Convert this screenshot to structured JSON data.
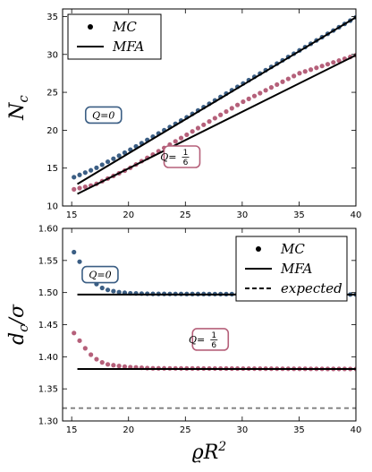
{
  "chart_data": [
    {
      "type": "scatter",
      "ylabel": "N",
      "ylabel_sub": "c",
      "xlim": [
        14.2,
        40
      ],
      "ylim": [
        10,
        36
      ],
      "xticks": [
        15,
        20,
        25,
        30,
        35,
        40
      ],
      "yticks": [
        10,
        15,
        20,
        25,
        30,
        35
      ],
      "legend": {
        "placement": "top-left",
        "entries": [
          {
            "marker": "dot",
            "label": "MC"
          },
          {
            "marker": "line",
            "label": "MFA"
          }
        ]
      },
      "annotations": [
        {
          "text": "Q = 0",
          "color": "#3b5e84",
          "x": 17.8,
          "y": 22
        },
        {
          "text": "Q = 1/6",
          "color": "#b5607a",
          "x": 24.7,
          "y": 16.5
        }
      ],
      "series": [
        {
          "kind": "mc",
          "color": "#3b5e84",
          "x_start": 15.2,
          "x_end": 40,
          "n": 51,
          "anchors": [
            [
              15.2,
              13.8
            ],
            [
              17,
              14.9
            ],
            [
              20,
              17.3
            ],
            [
              25,
              21.6
            ],
            [
              30,
              26.1
            ],
            [
              35,
              30.5
            ],
            [
              40,
              34.9
            ]
          ]
        },
        {
          "kind": "mfa",
          "color": "#000000",
          "x_start": 15.5,
          "x_end": 40,
          "anchors": [
            [
              15.5,
              12.9
            ],
            [
              40,
              34.9
            ]
          ]
        },
        {
          "kind": "mc",
          "color": "#b5607a",
          "x_start": 15.2,
          "x_end": 40,
          "n": 51,
          "anchors": [
            [
              15.2,
              12.2
            ],
            [
              17,
              12.8
            ],
            [
              20,
              14.9
            ],
            [
              25,
              19.3
            ],
            [
              30,
              23.7
            ],
            [
              35,
              27.5
            ],
            [
              40,
              29.9
            ]
          ]
        },
        {
          "kind": "mfa",
          "color": "#000000",
          "x_start": 15.5,
          "x_end": 40,
          "anchors": [
            [
              15.5,
              11.6
            ],
            [
              40,
              29.9
            ]
          ]
        }
      ]
    },
    {
      "type": "scatter",
      "xlabel": "ϱR",
      "xlabel_sup": "2",
      "ylabel": "d",
      "ylabel_sub": "c",
      "ylabel_tail": "/σ",
      "xlim": [
        14.2,
        40
      ],
      "ylim": [
        1.3,
        1.6
      ],
      "xticks": [
        15,
        20,
        25,
        30,
        35,
        40
      ],
      "yticks": [
        1.3,
        1.35,
        1.4,
        1.45,
        1.5,
        1.55,
        1.6
      ],
      "legend": {
        "placement": "top-right",
        "entries": [
          {
            "marker": "dot",
            "label": "MC"
          },
          {
            "marker": "line",
            "label": "MFA"
          },
          {
            "marker": "dashed",
            "label": "expected"
          }
        ]
      },
      "annotations": [
        {
          "text": "Q = 0",
          "color": "#3b5e84",
          "x": 17.5,
          "y": 1.528
        },
        {
          "text": "Q = 1/6",
          "color": "#b5607a",
          "x": 27.2,
          "y": 1.427
        }
      ],
      "series": [
        {
          "kind": "mc",
          "color": "#3b5e84",
          "x_start": 15.2,
          "x_end": 40,
          "n": 51,
          "anchors": [
            [
              15.2,
              1.563
            ],
            [
              15.7,
              1.548
            ],
            [
              16.2,
              1.534
            ],
            [
              16.7,
              1.521
            ],
            [
              17.2,
              1.513
            ],
            [
              17.7,
              1.507
            ],
            [
              18.2,
              1.504
            ],
            [
              19,
              1.501
            ],
            [
              20,
              1.499
            ],
            [
              22,
              1.498
            ],
            [
              40,
              1.497
            ]
          ]
        },
        {
          "kind": "mfa",
          "color": "#000000",
          "x_start": 15.5,
          "x_end": 40,
          "anchors": [
            [
              15.5,
              1.497
            ],
            [
              40,
              1.497
            ]
          ]
        },
        {
          "kind": "mc",
          "color": "#b5607a",
          "x_start": 15.2,
          "x_end": 40,
          "n": 51,
          "anchors": [
            [
              15.2,
              1.437
            ],
            [
              15.7,
              1.425
            ],
            [
              16.2,
              1.413
            ],
            [
              16.7,
              1.403
            ],
            [
              17.2,
              1.396
            ],
            [
              17.7,
              1.391
            ],
            [
              18.2,
              1.388
            ],
            [
              19,
              1.386
            ],
            [
              20,
              1.384
            ],
            [
              22,
              1.382
            ],
            [
              40,
              1.381
            ]
          ]
        },
        {
          "kind": "mfa",
          "color": "#000000",
          "x_start": 15.5,
          "x_end": 40,
          "anchors": [
            [
              15.5,
              1.381
            ],
            [
              40,
              1.381
            ]
          ]
        },
        {
          "kind": "expected",
          "color": "#7f7f7f",
          "x_start": 14.2,
          "x_end": 40,
          "anchors": [
            [
              14.2,
              1.32
            ],
            [
              40,
              1.32
            ]
          ]
        }
      ]
    }
  ]
}
